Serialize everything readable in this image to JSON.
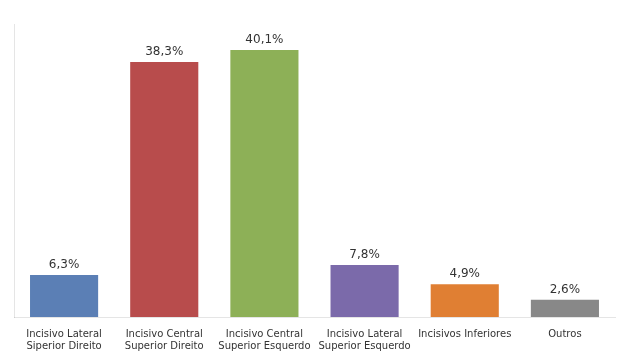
{
  "chart_data": {
    "type": "bar",
    "categories": [
      "Incisivo Lateral\nSiperior Direito",
      "Incisivo Central\nSuperior Direito",
      "Incisivo Central\nSuperior Esquerdo",
      "Incisivo Lateral\nSuperior Esquerdo",
      "Incisivos Inferiores",
      "Outros"
    ],
    "values": [
      6.3,
      38.3,
      40.1,
      7.8,
      4.9,
      2.6
    ],
    "value_labels": [
      "6,3%",
      "38,3%",
      "40,1%",
      "7,8%",
      "4,9%",
      "2,6%"
    ],
    "colors": [
      "#5b7fb5",
      "#b84c4c",
      "#8db057",
      "#7b6aaa",
      "#e07f33",
      "#888888"
    ],
    "ylim": [
      0,
      44
    ],
    "grid": false,
    "data_labels": true,
    "tick_labels": "x"
  }
}
